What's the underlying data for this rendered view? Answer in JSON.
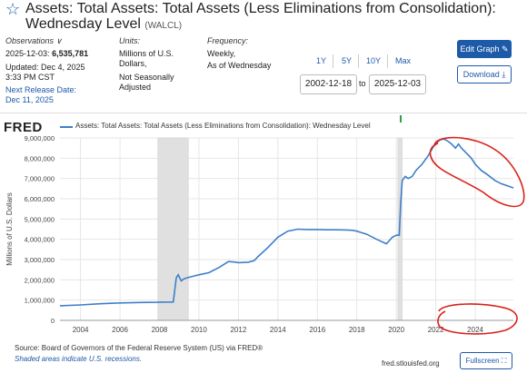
{
  "header": {
    "title": "Assets: Total Assets: Total Assets (Less Eliminations from Consolidation): Wednesday Level",
    "series_id": "(WALCL)"
  },
  "observations": {
    "label": "Observations",
    "date": "2025-12-03:",
    "value": "6,535,781",
    "updated": "Updated: Dec 4, 2025",
    "updated_time": "3:33 PM CST",
    "next_release_label": "Next Release Date:",
    "next_release_date": "Dec 11, 2025"
  },
  "units": {
    "label": "Units:",
    "line1": "Millions of U.S.",
    "line2": "Dollars,",
    "line3": "Not Seasonally",
    "line4": "Adjusted"
  },
  "frequency": {
    "label": "Frequency:",
    "line1": "Weekly,",
    "line2": "As of Wednesday"
  },
  "range": {
    "options": [
      "1Y",
      "5Y",
      "10Y",
      "Max"
    ],
    "start": "2002-12-18",
    "to": "to",
    "end": "2025-12-03"
  },
  "buttons": {
    "edit_graph": "Edit Graph ✎",
    "download": "Download ⤓",
    "fullscreen": "Fullscreen ⛶"
  },
  "chart_header": {
    "logo": "FRED",
    "legend": "Assets: Total Assets: Total Assets (Less Eliminations from Consolidation): Wednesday Level"
  },
  "footer": {
    "source": "Source: Board of Governors of the Federal Reserve System (US) via FRED®",
    "shaded": "Shaded areas indicate U.S. recessions.",
    "url": "fred.stlouisfed.org"
  },
  "colors": {
    "series": "#3d7fc8",
    "recession": "#e0e0e0",
    "annotation": "#d9211b",
    "accent": "#1d5aa8"
  },
  "chart_data": {
    "type": "line",
    "ylabel": "Millions of U.S. Dollars",
    "ylim": [
      0,
      9000000
    ],
    "yticks": [
      "0",
      "1,000,000",
      "2,000,000",
      "3,000,000",
      "4,000,000",
      "5,000,000",
      "6,000,000",
      "7,000,000",
      "8,000,000",
      "9,000,000"
    ],
    "xticks": [
      "2004",
      "2006",
      "2008",
      "2010",
      "2012",
      "2014",
      "2016",
      "2018",
      "2020",
      "2022",
      "2024"
    ],
    "xlim": [
      2002.96,
      2025.93
    ],
    "grid": true,
    "recessions": [
      [
        2007.92,
        2009.46
      ],
      [
        2020.08,
        2020.29
      ]
    ],
    "series": [
      {
        "x": [
          2002.96,
          2004.0,
          2005.0,
          2006.0,
          2007.0,
          2007.9,
          2008.0,
          2008.6,
          2008.7,
          2008.85,
          2008.95,
          2009.1,
          2009.25,
          2009.4,
          2009.6,
          2009.8,
          2010.0,
          2010.5,
          2011.0,
          2011.5,
          2011.8,
          2012.0,
          2012.5,
          2012.8,
          2013.0,
          2013.5,
          2014.0,
          2014.5,
          2015.0,
          2015.5,
          2016.0,
          2016.5,
          2017.0,
          2017.5,
          2017.8,
          2018.0,
          2018.5,
          2019.0,
          2019.5,
          2019.8,
          2020.0,
          2020.15,
          2020.22,
          2020.3,
          2020.45,
          2020.6,
          2020.8,
          2021.0,
          2021.3,
          2021.6,
          2021.9,
          2022.2,
          2022.4,
          2022.6,
          2022.8,
          2023.0,
          2023.15,
          2023.3,
          2023.5,
          2023.8,
          2024.0,
          2024.3,
          2024.6,
          2025.0,
          2025.3,
          2025.6,
          2025.93
        ],
        "y": [
          720000,
          760000,
          820000,
          860000,
          880000,
          890000,
          900000,
          905000,
          910000,
          2100000,
          2250000,
          1950000,
          2050000,
          2100000,
          2150000,
          2200000,
          2250000,
          2350000,
          2600000,
          2900000,
          2880000,
          2850000,
          2870000,
          2950000,
          3150000,
          3600000,
          4100000,
          4400000,
          4500000,
          4480000,
          4480000,
          4470000,
          4470000,
          4460000,
          4440000,
          4400000,
          4250000,
          4000000,
          3780000,
          4100000,
          4200000,
          4200000,
          5800000,
          6900000,
          7100000,
          7000000,
          7100000,
          7400000,
          7700000,
          8100000,
          8600000,
          8900000,
          8950000,
          8850000,
          8700000,
          8500000,
          8700000,
          8500000,
          8300000,
          8000000,
          7700000,
          7400000,
          7200000,
          6900000,
          6750000,
          6650000,
          6535781
        ]
      }
    ]
  }
}
